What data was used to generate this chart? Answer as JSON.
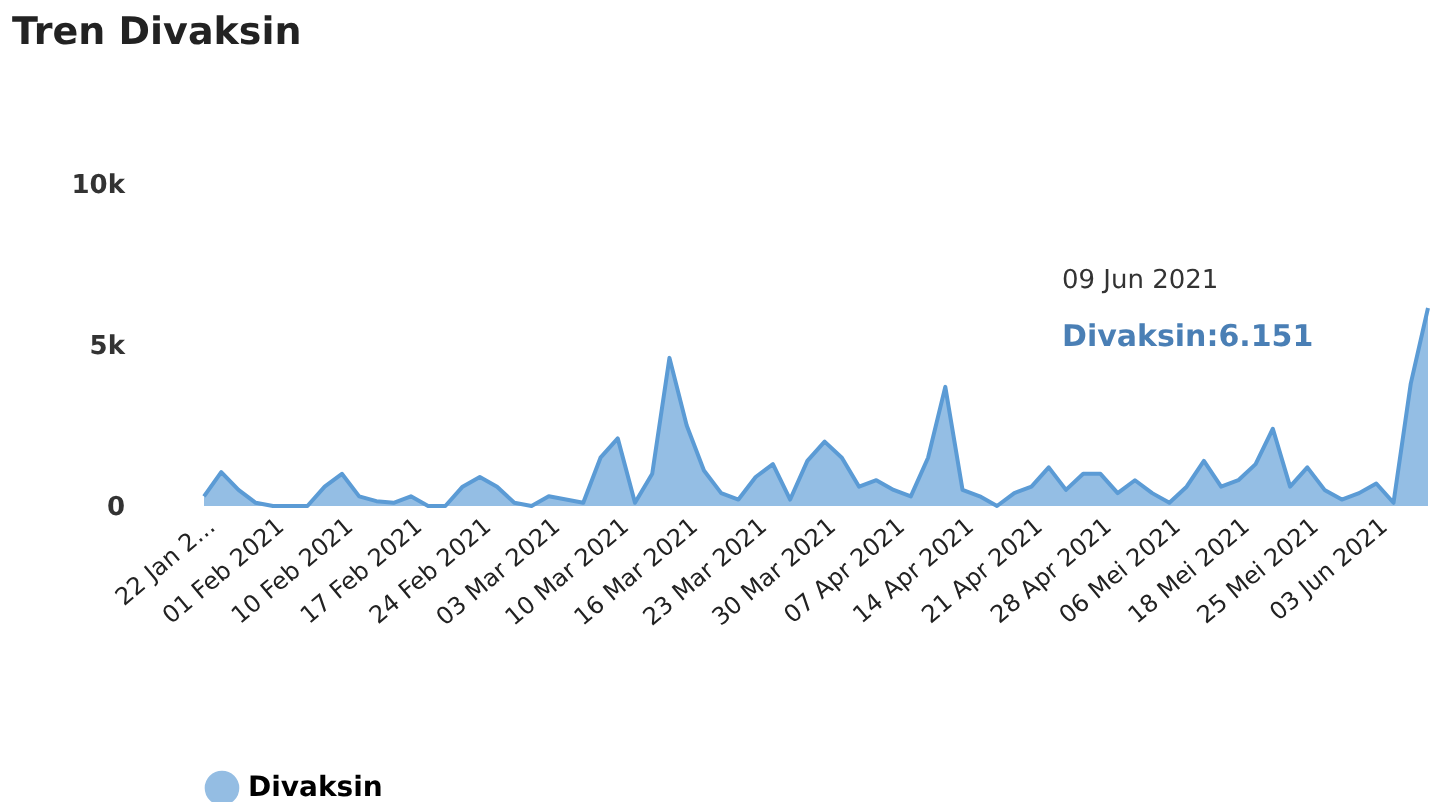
{
  "chart_data": {
    "type": "area",
    "title": "Tren Divaksin",
    "categories": [
      "22 Jan 2...",
      null,
      null,
      null,
      "01 Feb 2021",
      null,
      null,
      null,
      "10 Feb 2021",
      null,
      null,
      null,
      "17 Feb 2021",
      null,
      null,
      null,
      "24 Feb 2021",
      null,
      null,
      null,
      "03 Mar 2021",
      null,
      null,
      null,
      "10 Mar 2021",
      null,
      null,
      null,
      "16 Mar 2021",
      null,
      null,
      null,
      "23 Mar 2021",
      null,
      null,
      null,
      "30 Mar 2021",
      null,
      null,
      null,
      "07 Apr 2021",
      null,
      null,
      null,
      "14 Apr 2021",
      null,
      null,
      null,
      "21 Apr 2021",
      null,
      null,
      null,
      "28 Apr 2021",
      null,
      null,
      null,
      "06 Mei 2021",
      null,
      null,
      null,
      "18 Mei 2021",
      null,
      null,
      null,
      "25 Mei 2021",
      null,
      null,
      null,
      "03 Jun 2021",
      null,
      null,
      null
    ],
    "series": [
      {
        "name": "Divaksin",
        "color": "#5b9bd5",
        "values": [
          300,
          1050,
          500,
          100,
          0,
          0,
          0,
          600,
          1000,
          300,
          150,
          100,
          300,
          0,
          0,
          600,
          900,
          600,
          100,
          0,
          300,
          200,
          100,
          1500,
          2100,
          100,
          1000,
          4600,
          2500,
          1100,
          400,
          200,
          900,
          1300,
          200,
          1400,
          2000,
          1500,
          600,
          800,
          500,
          300,
          1500,
          3700,
          500,
          300,
          0,
          400,
          600,
          1200,
          500,
          1000,
          1000,
          400,
          800,
          400,
          100,
          600,
          1400,
          600,
          800,
          1300,
          2400,
          600,
          1200,
          500,
          200,
          400,
          700,
          100,
          3800,
          6151
        ]
      }
    ],
    "ylim": [
      0,
      10000
    ],
    "yticks": [
      0,
      {
        "value": 5000,
        "label": "5k"
      },
      {
        "value": 10000,
        "label": "10k"
      }
    ],
    "grid": false,
    "legend": "bottom",
    "annotations": [
      "09 Jun 2021",
      "Divaksin:6.151"
    ]
  }
}
